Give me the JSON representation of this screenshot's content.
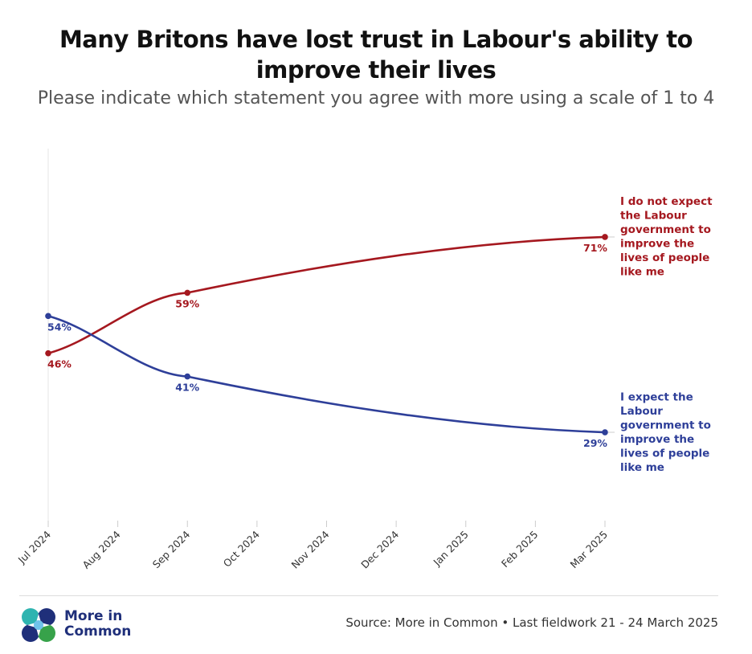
{
  "header": {
    "title": "Many Britons have lost trust in Labour's ability to improve their lives",
    "subtitle": "Please indicate which statement you agree with more using a scale of 1 to 4"
  },
  "footer": {
    "source": "Source: More in Common • Last fieldwork 21 - 24 March 2025",
    "logo_text_line1": "More in",
    "logo_text_line2": "Common"
  },
  "colors": {
    "red": "#a5181f",
    "blue": "#2e3f99",
    "axis": "#cccccc"
  },
  "chart_data": {
    "type": "line",
    "title": "Many Britons have lost trust in Labour's ability to improve their lives",
    "subtitle": "Please indicate which statement you agree with more using a scale of 1 to 4",
    "x_ticks": [
      "Jul 2024",
      "Aug 2024",
      "Sep 2024",
      "Oct 2024",
      "Nov 2024",
      "Dec 2024",
      "Jan 2025",
      "Feb 2025",
      "Mar 2025"
    ],
    "xlim": [
      "2024-07",
      "2025-03"
    ],
    "ylim": [
      10,
      90
    ],
    "grid": false,
    "series": [
      {
        "name": "I do not expect the Labour government to improve the lives of people like me",
        "name_lines": [
          "I do not expect",
          "the Labour",
          "government to",
          "improve the",
          "lives of people",
          "like me"
        ],
        "color": "#a5181f",
        "points": [
          {
            "x": "2024-07",
            "y": 46,
            "label": "46%"
          },
          {
            "x": "2024-09",
            "y": 59,
            "label": "59%"
          },
          {
            "x": "2025-03",
            "y": 71,
            "label": "71%"
          }
        ]
      },
      {
        "name": "I expect the Labour government to improve the lives of people like me",
        "name_lines": [
          "I expect the",
          "Labour",
          "government to",
          "improve the",
          "lives of people",
          "like me"
        ],
        "color": "#2e3f99",
        "points": [
          {
            "x": "2024-07",
            "y": 54,
            "label": "54%"
          },
          {
            "x": "2024-09",
            "y": 41,
            "label": "41%"
          },
          {
            "x": "2025-03",
            "y": 29,
            "label": "29%"
          }
        ]
      }
    ]
  }
}
